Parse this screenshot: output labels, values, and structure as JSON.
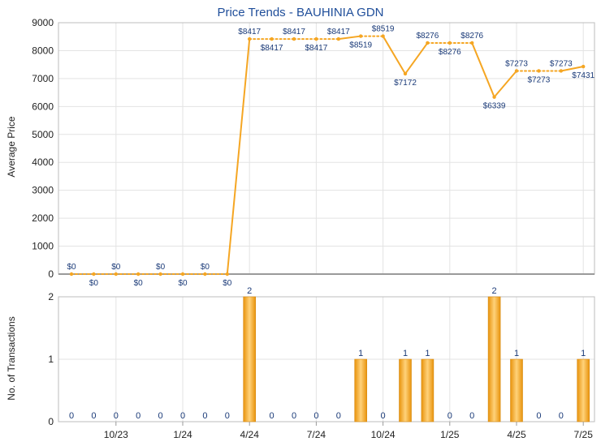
{
  "chart_data": [
    {
      "type": "line",
      "title": "Price Trends - BAUHINIA GDN",
      "ylabel": "Average Price",
      "ylim": [
        0,
        9000
      ],
      "yticks": [
        "0",
        "1000",
        "2000",
        "3000",
        "4000",
        "5000",
        "6000",
        "7000",
        "8000",
        "9000"
      ],
      "grid": true,
      "color": "#f5a623",
      "x": [
        "8/23",
        "9/23",
        "10/23",
        "11/23",
        "12/23",
        "1/24",
        "2/24",
        "3/24",
        "4/24",
        "5/24",
        "6/24",
        "7/24",
        "8/24",
        "9/24",
        "10/24",
        "11/24",
        "12/24",
        "1/25",
        "2/25",
        "3/25",
        "4/25",
        "5/25",
        "6/25",
        "7/25"
      ],
      "values": [
        0,
        0,
        0,
        0,
        0,
        0,
        0,
        0,
        8417,
        8417,
        8417,
        8417,
        8417,
        8519,
        8519,
        7172,
        8276,
        8276,
        8276,
        6339,
        7273,
        7273,
        7273,
        7431
      ],
      "labels": [
        "$0",
        "$0",
        "$0",
        "$0",
        "$0",
        "$0",
        "$0",
        "$0",
        "$8417",
        "$8417",
        "$8417",
        "$8417",
        "$8417",
        "$8519",
        "$8519",
        "$7172",
        "$8276",
        "$8276",
        "$8276",
        "$6339",
        "$7273",
        "$7273",
        "$7273",
        "$7431"
      ]
    },
    {
      "type": "bar",
      "ylabel": "No. of Transactions",
      "ylim": [
        0,
        2
      ],
      "yticks": [
        "0",
        "1",
        "2"
      ],
      "color": "#f5a623",
      "x": [
        "8/23",
        "9/23",
        "10/23",
        "11/23",
        "12/23",
        "1/24",
        "2/24",
        "3/24",
        "4/24",
        "5/24",
        "6/24",
        "7/24",
        "8/24",
        "9/24",
        "10/24",
        "11/24",
        "12/24",
        "1/25",
        "2/25",
        "3/25",
        "4/25",
        "5/25",
        "6/25",
        "7/25"
      ],
      "values": [
        0,
        0,
        0,
        0,
        0,
        0,
        0,
        0,
        2,
        0,
        0,
        0,
        0,
        1,
        0,
        1,
        1,
        0,
        0,
        2,
        1,
        0,
        0,
        1
      ]
    }
  ],
  "x_axis_ticks": [
    {
      "label": "10/23",
      "index": 2
    },
    {
      "label": "1/24",
      "index": 5
    },
    {
      "label": "4/24",
      "index": 8
    },
    {
      "label": "7/24",
      "index": 11
    },
    {
      "label": "10/24",
      "index": 14
    },
    {
      "label": "1/25",
      "index": 17
    },
    {
      "label": "4/25",
      "index": 20
    },
    {
      "label": "7/25",
      "index": 23
    }
  ]
}
